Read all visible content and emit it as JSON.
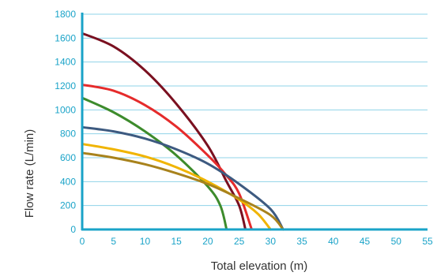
{
  "chart_data": {
    "type": "line",
    "title": "",
    "xlabel": "Total elevation (m)",
    "ylabel": "Flow rate (L/min)",
    "xlim": [
      0,
      55
    ],
    "ylim": [
      0,
      1800
    ],
    "xticks": [
      0,
      5,
      10,
      15,
      20,
      25,
      30,
      35,
      40,
      45,
      50,
      55
    ],
    "yticks": [
      0,
      200,
      400,
      600,
      800,
      1000,
      1200,
      1400,
      1600,
      1800
    ],
    "grid": "horizontal",
    "legend": "none",
    "axis_color": "#1aa3c8",
    "grid_color": "#8fd3e8",
    "series": [
      {
        "color": "#7a1020",
        "x": [
          0,
          5,
          10,
          15,
          20,
          23,
          25,
          26
        ],
        "y": [
          1640,
          1530,
          1330,
          1050,
          700,
          400,
          200,
          0
        ]
      },
      {
        "color": "#e52b2b",
        "x": [
          0,
          5,
          10,
          15,
          20,
          23,
          25,
          27
        ],
        "y": [
          1210,
          1160,
          1040,
          860,
          620,
          450,
          300,
          0
        ]
      },
      {
        "color": "#3d8b2c",
        "x": [
          0,
          5,
          10,
          15,
          20,
          22,
          23
        ],
        "y": [
          1100,
          980,
          820,
          620,
          360,
          200,
          0
        ]
      },
      {
        "color": "#3d5a80",
        "x": [
          0,
          5,
          10,
          15,
          20,
          25,
          30,
          32
        ],
        "y": [
          855,
          820,
          760,
          670,
          550,
          380,
          170,
          0
        ]
      },
      {
        "color": "#f0b400",
        "x": [
          0,
          5,
          10,
          15,
          20,
          25,
          28,
          30
        ],
        "y": [
          715,
          670,
          610,
          520,
          400,
          250,
          130,
          0
        ]
      },
      {
        "color": "#a8821c",
        "x": [
          0,
          5,
          10,
          15,
          20,
          25,
          30,
          32
        ],
        "y": [
          640,
          600,
          545,
          470,
          380,
          260,
          120,
          0
        ]
      }
    ]
  }
}
